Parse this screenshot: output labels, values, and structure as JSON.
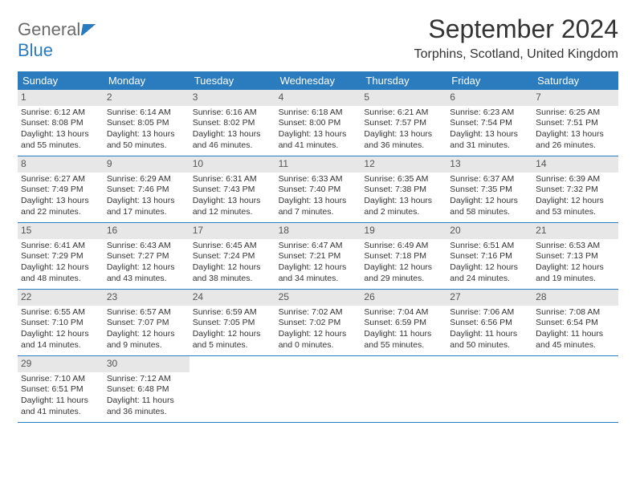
{
  "logo": {
    "part1": "General",
    "part2": "Blue"
  },
  "title": "September 2024",
  "location": "Torphins, Scotland, United Kingdom",
  "colors": {
    "header_bg": "#2b7bbf",
    "header_text": "#ffffff",
    "daynum_bg": "#e7e7e7",
    "border": "#2b7bbf",
    "body_text": "#333333"
  },
  "day_names": [
    "Sunday",
    "Monday",
    "Tuesday",
    "Wednesday",
    "Thursday",
    "Friday",
    "Saturday"
  ],
  "weeks": [
    [
      {
        "num": "1",
        "sunrise": "Sunrise: 6:12 AM",
        "sunset": "Sunset: 8:08 PM",
        "daylight1": "Daylight: 13 hours",
        "daylight2": "and 55 minutes."
      },
      {
        "num": "2",
        "sunrise": "Sunrise: 6:14 AM",
        "sunset": "Sunset: 8:05 PM",
        "daylight1": "Daylight: 13 hours",
        "daylight2": "and 50 minutes."
      },
      {
        "num": "3",
        "sunrise": "Sunrise: 6:16 AM",
        "sunset": "Sunset: 8:02 PM",
        "daylight1": "Daylight: 13 hours",
        "daylight2": "and 46 minutes."
      },
      {
        "num": "4",
        "sunrise": "Sunrise: 6:18 AM",
        "sunset": "Sunset: 8:00 PM",
        "daylight1": "Daylight: 13 hours",
        "daylight2": "and 41 minutes."
      },
      {
        "num": "5",
        "sunrise": "Sunrise: 6:21 AM",
        "sunset": "Sunset: 7:57 PM",
        "daylight1": "Daylight: 13 hours",
        "daylight2": "and 36 minutes."
      },
      {
        "num": "6",
        "sunrise": "Sunrise: 6:23 AM",
        "sunset": "Sunset: 7:54 PM",
        "daylight1": "Daylight: 13 hours",
        "daylight2": "and 31 minutes."
      },
      {
        "num": "7",
        "sunrise": "Sunrise: 6:25 AM",
        "sunset": "Sunset: 7:51 PM",
        "daylight1": "Daylight: 13 hours",
        "daylight2": "and 26 minutes."
      }
    ],
    [
      {
        "num": "8",
        "sunrise": "Sunrise: 6:27 AM",
        "sunset": "Sunset: 7:49 PM",
        "daylight1": "Daylight: 13 hours",
        "daylight2": "and 22 minutes."
      },
      {
        "num": "9",
        "sunrise": "Sunrise: 6:29 AM",
        "sunset": "Sunset: 7:46 PM",
        "daylight1": "Daylight: 13 hours",
        "daylight2": "and 17 minutes."
      },
      {
        "num": "10",
        "sunrise": "Sunrise: 6:31 AM",
        "sunset": "Sunset: 7:43 PM",
        "daylight1": "Daylight: 13 hours",
        "daylight2": "and 12 minutes."
      },
      {
        "num": "11",
        "sunrise": "Sunrise: 6:33 AM",
        "sunset": "Sunset: 7:40 PM",
        "daylight1": "Daylight: 13 hours",
        "daylight2": "and 7 minutes."
      },
      {
        "num": "12",
        "sunrise": "Sunrise: 6:35 AM",
        "sunset": "Sunset: 7:38 PM",
        "daylight1": "Daylight: 13 hours",
        "daylight2": "and 2 minutes."
      },
      {
        "num": "13",
        "sunrise": "Sunrise: 6:37 AM",
        "sunset": "Sunset: 7:35 PM",
        "daylight1": "Daylight: 12 hours",
        "daylight2": "and 58 minutes."
      },
      {
        "num": "14",
        "sunrise": "Sunrise: 6:39 AM",
        "sunset": "Sunset: 7:32 PM",
        "daylight1": "Daylight: 12 hours",
        "daylight2": "and 53 minutes."
      }
    ],
    [
      {
        "num": "15",
        "sunrise": "Sunrise: 6:41 AM",
        "sunset": "Sunset: 7:29 PM",
        "daylight1": "Daylight: 12 hours",
        "daylight2": "and 48 minutes."
      },
      {
        "num": "16",
        "sunrise": "Sunrise: 6:43 AM",
        "sunset": "Sunset: 7:27 PM",
        "daylight1": "Daylight: 12 hours",
        "daylight2": "and 43 minutes."
      },
      {
        "num": "17",
        "sunrise": "Sunrise: 6:45 AM",
        "sunset": "Sunset: 7:24 PM",
        "daylight1": "Daylight: 12 hours",
        "daylight2": "and 38 minutes."
      },
      {
        "num": "18",
        "sunrise": "Sunrise: 6:47 AM",
        "sunset": "Sunset: 7:21 PM",
        "daylight1": "Daylight: 12 hours",
        "daylight2": "and 34 minutes."
      },
      {
        "num": "19",
        "sunrise": "Sunrise: 6:49 AM",
        "sunset": "Sunset: 7:18 PM",
        "daylight1": "Daylight: 12 hours",
        "daylight2": "and 29 minutes."
      },
      {
        "num": "20",
        "sunrise": "Sunrise: 6:51 AM",
        "sunset": "Sunset: 7:16 PM",
        "daylight1": "Daylight: 12 hours",
        "daylight2": "and 24 minutes."
      },
      {
        "num": "21",
        "sunrise": "Sunrise: 6:53 AM",
        "sunset": "Sunset: 7:13 PM",
        "daylight1": "Daylight: 12 hours",
        "daylight2": "and 19 minutes."
      }
    ],
    [
      {
        "num": "22",
        "sunrise": "Sunrise: 6:55 AM",
        "sunset": "Sunset: 7:10 PM",
        "daylight1": "Daylight: 12 hours",
        "daylight2": "and 14 minutes."
      },
      {
        "num": "23",
        "sunrise": "Sunrise: 6:57 AM",
        "sunset": "Sunset: 7:07 PM",
        "daylight1": "Daylight: 12 hours",
        "daylight2": "and 9 minutes."
      },
      {
        "num": "24",
        "sunrise": "Sunrise: 6:59 AM",
        "sunset": "Sunset: 7:05 PM",
        "daylight1": "Daylight: 12 hours",
        "daylight2": "and 5 minutes."
      },
      {
        "num": "25",
        "sunrise": "Sunrise: 7:02 AM",
        "sunset": "Sunset: 7:02 PM",
        "daylight1": "Daylight: 12 hours",
        "daylight2": "and 0 minutes."
      },
      {
        "num": "26",
        "sunrise": "Sunrise: 7:04 AM",
        "sunset": "Sunset: 6:59 PM",
        "daylight1": "Daylight: 11 hours",
        "daylight2": "and 55 minutes."
      },
      {
        "num": "27",
        "sunrise": "Sunrise: 7:06 AM",
        "sunset": "Sunset: 6:56 PM",
        "daylight1": "Daylight: 11 hours",
        "daylight2": "and 50 minutes."
      },
      {
        "num": "28",
        "sunrise": "Sunrise: 7:08 AM",
        "sunset": "Sunset: 6:54 PM",
        "daylight1": "Daylight: 11 hours",
        "daylight2": "and 45 minutes."
      }
    ],
    [
      {
        "num": "29",
        "sunrise": "Sunrise: 7:10 AM",
        "sunset": "Sunset: 6:51 PM",
        "daylight1": "Daylight: 11 hours",
        "daylight2": "and 41 minutes."
      },
      {
        "num": "30",
        "sunrise": "Sunrise: 7:12 AM",
        "sunset": "Sunset: 6:48 PM",
        "daylight1": "Daylight: 11 hours",
        "daylight2": "and 36 minutes."
      },
      null,
      null,
      null,
      null,
      null
    ]
  ]
}
